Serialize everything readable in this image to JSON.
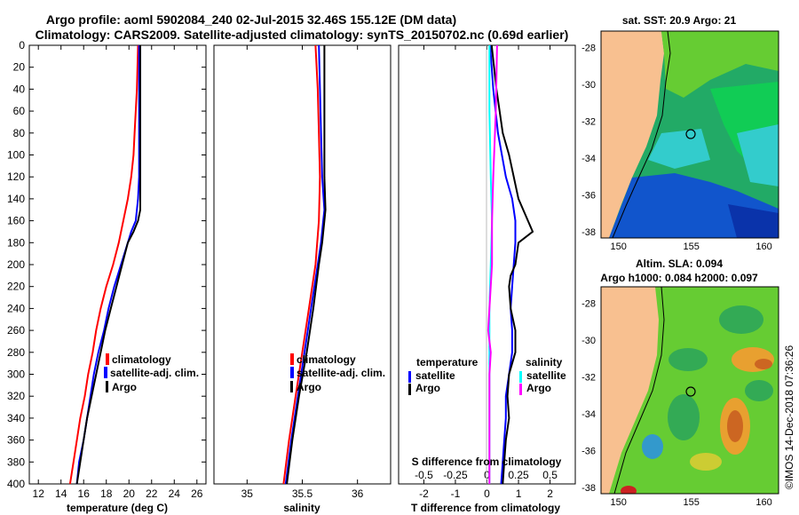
{
  "title": {
    "line1": "Argo profile: aoml 5902084_240 02-Jul-2015 32.46S 155.12E (DM data)",
    "line2": "Climatology: CARS2009. Satellite-adjusted climatology: synTS_20150702.nc (0.69d earlier)"
  },
  "colors": {
    "climatology": "#ff0000",
    "satellite": "#0000ff",
    "argo": "#000000",
    "sal_sat": "#00ffff",
    "sal_argo": "#ff00ff",
    "land": "#f8c090"
  },
  "chart_data": [
    {
      "type": "line",
      "title": "temperature",
      "xlabel": "temperature (deg C)",
      "xlim": [
        11.2,
        26.8
      ],
      "ylim": [
        400,
        0
      ],
      "xticks": [
        12,
        14,
        16,
        18,
        20,
        22,
        24,
        26
      ],
      "yticks": [
        0,
        20,
        40,
        60,
        80,
        100,
        120,
        140,
        160,
        180,
        200,
        220,
        240,
        260,
        280,
        300,
        320,
        340,
        360,
        380,
        400
      ],
      "legend": [
        "climatology",
        "satellite-adj. clim.",
        "Argo"
      ],
      "series": [
        {
          "name": "climatology",
          "depth": [
            0,
            40,
            80,
            100,
            120,
            140,
            160,
            180,
            200,
            220,
            240,
            260,
            280,
            300,
            320,
            340,
            360,
            380,
            400
          ],
          "values": [
            20.8,
            20.7,
            20.5,
            20.4,
            20.2,
            19.9,
            19.5,
            19.1,
            18.6,
            18.0,
            17.5,
            17.1,
            16.8,
            16.4,
            16.1,
            15.7,
            15.4,
            15.1,
            14.8
          ]
        },
        {
          "name": "satellite-adj. clim.",
          "depth": [
            0,
            40,
            80,
            120,
            140,
            160,
            170,
            180,
            200,
            220,
            240,
            260,
            280,
            300,
            320,
            340,
            360,
            380,
            400
          ],
          "values": [
            20.9,
            20.9,
            20.9,
            20.9,
            20.8,
            20.6,
            20.2,
            19.9,
            19.3,
            18.7,
            18.2,
            17.8,
            17.3,
            16.9,
            16.6,
            16.3,
            16.0,
            15.6,
            15.4
          ]
        },
        {
          "name": "Argo",
          "depth": [
            0,
            40,
            80,
            120,
            150,
            160,
            170,
            180,
            200,
            220,
            240,
            260,
            280,
            300,
            320,
            340,
            360,
            380,
            400
          ],
          "values": [
            21.0,
            21.0,
            21.0,
            21.0,
            21.0,
            20.8,
            20.4,
            19.9,
            19.4,
            18.9,
            18.4,
            17.9,
            17.5,
            17.1,
            16.7,
            16.3,
            16.0,
            15.7,
            15.4
          ]
        }
      ]
    },
    {
      "type": "line",
      "title": "salinity",
      "xlabel": "salinity",
      "xlim": [
        34.7,
        36.3
      ],
      "ylim": [
        400,
        0
      ],
      "xticks": [
        35,
        35.5,
        36
      ],
      "xticklabels": [
        "35",
        "35.5",
        "36"
      ],
      "legend": [
        "climatology",
        "satellite-adj. clim.",
        "Argo"
      ],
      "series": [
        {
          "name": "climatology",
          "depth": [
            0,
            40,
            80,
            120,
            160,
            200,
            240,
            280,
            320,
            360,
            400
          ],
          "values": [
            35.62,
            35.64,
            35.65,
            35.66,
            35.65,
            35.62,
            35.56,
            35.5,
            35.44,
            35.38,
            35.33
          ]
        },
        {
          "name": "satellite-adj. clim.",
          "depth": [
            0,
            40,
            80,
            120,
            150,
            160,
            180,
            200,
            240,
            280,
            320,
            360,
            400
          ],
          "values": [
            35.65,
            35.66,
            35.67,
            35.68,
            35.7,
            35.69,
            35.67,
            35.64,
            35.58,
            35.52,
            35.46,
            35.4,
            35.35
          ]
        },
        {
          "name": "Argo",
          "depth": [
            0,
            40,
            80,
            120,
            150,
            160,
            180,
            200,
            240,
            280,
            320,
            360,
            400
          ],
          "values": [
            35.7,
            35.7,
            35.7,
            35.7,
            35.71,
            35.7,
            35.68,
            35.65,
            35.6,
            35.54,
            35.47,
            35.41,
            35.36
          ]
        }
      ]
    },
    {
      "type": "line",
      "title": "differences",
      "xlabel": "T difference from climatology",
      "xlabel_top": "S difference from climatology",
      "xlim": [
        -2.8,
        2.8
      ],
      "ylim": [
        400,
        0
      ],
      "xticks": [
        -2,
        -1,
        0,
        1,
        2
      ],
      "xticks_top": [
        -0.5,
        -0.25,
        0,
        0.25,
        0.5
      ],
      "xticks_top_labels": [
        "-0.5",
        "-0.25",
        "0",
        "0.25",
        "0.5"
      ],
      "legend_temperature": [
        "temperature",
        "satellite",
        "Argo"
      ],
      "legend_salinity": [
        "salinity",
        "satellite",
        "Argo"
      ],
      "series": [
        {
          "name": "temperature satellite",
          "depth": [
            0,
            40,
            80,
            120,
            140,
            160,
            180,
            200,
            220,
            240,
            260,
            280,
            300,
            320,
            340,
            360,
            380,
            400
          ],
          "values": [
            0.1,
            0.2,
            0.35,
            0.6,
            0.8,
            0.9,
            0.9,
            0.85,
            0.8,
            0.75,
            0.8,
            0.8,
            0.7,
            0.6,
            0.6,
            0.55,
            0.5,
            0.45
          ]
        },
        {
          "name": "temperature Argo",
          "depth": [
            0,
            40,
            80,
            100,
            120,
            140,
            160,
            170,
            180,
            200,
            210,
            220,
            240,
            260,
            280,
            300,
            320,
            340,
            360,
            380,
            400
          ],
          "values": [
            0.15,
            0.3,
            0.5,
            0.7,
            0.85,
            1.0,
            1.3,
            1.45,
            1.0,
            0.9,
            0.75,
            0.7,
            0.75,
            0.9,
            0.9,
            0.7,
            0.65,
            0.7,
            0.6,
            0.55,
            0.5
          ]
        },
        {
          "name": "salinity satellite",
          "depth": [
            0,
            60,
            120,
            160,
            200,
            240,
            300,
            360,
            400
          ],
          "values": [
            0.02,
            0.02,
            0.03,
            0.04,
            0.03,
            0.02,
            0.02,
            0.02,
            0.02
          ]
        },
        {
          "name": "salinity Argo",
          "depth": [
            0,
            60,
            120,
            160,
            200,
            240,
            260,
            280,
            300,
            360,
            400
          ],
          "values": [
            0.08,
            0.07,
            0.05,
            0.04,
            0.04,
            0.02,
            0.01,
            0.03,
            0.02,
            0.02,
            0.02
          ]
        }
      ]
    },
    {
      "type": "heatmap",
      "title": "sat. SST: 20.9 Argo: 21",
      "xticks": [
        150,
        155,
        160
      ],
      "yticks": [
        -28,
        -30,
        -32,
        -34,
        -36,
        -38
      ],
      "argo_marker": {
        "lon": 155.12,
        "lat": -32.46
      }
    },
    {
      "type": "heatmap",
      "title": "Altim. SLA: 0.094",
      "subtitle": "Argo h1000: 0.084 h2000: 0.097",
      "xticks": [
        150,
        155,
        160
      ],
      "yticks": [
        -28,
        -30,
        -32,
        -34,
        -36,
        -38
      ],
      "argo_marker": {
        "lon": 155.12,
        "lat": -32.46
      }
    }
  ],
  "watermark": "©IMOS 14-Dec-2018 07:36:26"
}
